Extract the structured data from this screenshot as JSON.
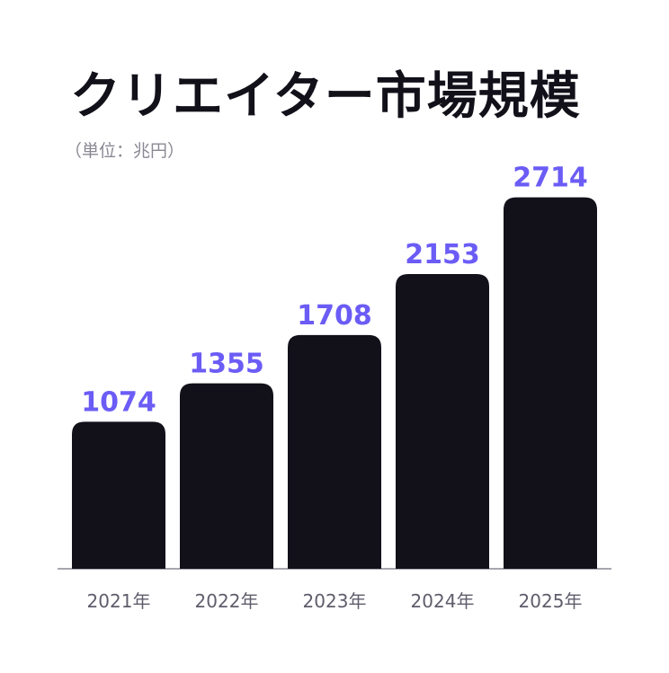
{
  "chart_data": {
    "type": "bar",
    "title": "クリエイター市場規模",
    "subtitle": "（単位：兆円）",
    "categories": [
      "2021年",
      "2022年",
      "2023年",
      "2024年",
      "2025年"
    ],
    "values": [
      1074,
      1355,
      1708,
      2153,
      2714
    ],
    "value_labels": [
      "1074",
      "1355",
      "1708",
      "2153",
      "2714"
    ],
    "ylim": [
      0,
      3000
    ],
    "grid": false,
    "legend": "none",
    "colors": {
      "bar": "#12111a",
      "value_label": "#6b5cf6",
      "axis": "#8a8894"
    }
  }
}
